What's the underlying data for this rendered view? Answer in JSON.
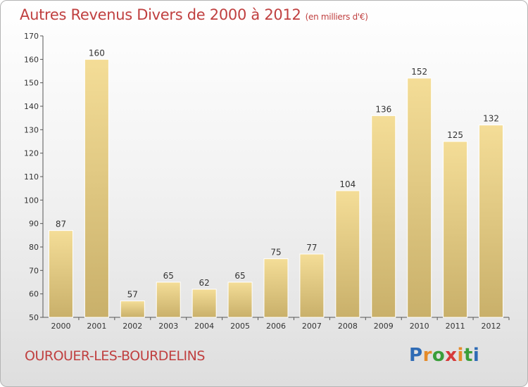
{
  "header": {
    "title": "Autres Revenus Divers de 2000 à 2012",
    "unit": "(en milliers d'€)"
  },
  "footer": {
    "commune": "OUROUER-LES-BOURDELINS",
    "logo_text": "Proxiti"
  },
  "colors": {
    "title": "#c04040",
    "bar_light": "#f4dd97",
    "bar_dark": "#c9b06a",
    "logo": [
      "#2e6bb5",
      "#e58b2a",
      "#3a9e3a",
      "#d63a3a",
      "#e58b2a",
      "#3a9e3a",
      "#2e6bb5"
    ]
  },
  "chart_data": {
    "type": "bar",
    "categories": [
      "2000",
      "2001",
      "2002",
      "2003",
      "2004",
      "2005",
      "2006",
      "2007",
      "2008",
      "2009",
      "2010",
      "2011",
      "2012"
    ],
    "values": [
      87,
      160,
      57,
      65,
      62,
      65,
      75,
      77,
      104,
      136,
      152,
      125,
      132
    ],
    "title": "Autres Revenus Divers de 2000 à 2012",
    "xlabel": "",
    "ylabel": "",
    "ylim": [
      50,
      170
    ],
    "yticks": [
      50,
      60,
      70,
      80,
      90,
      100,
      110,
      120,
      130,
      140,
      150,
      160,
      170
    ],
    "grid": false,
    "legend": "none"
  }
}
